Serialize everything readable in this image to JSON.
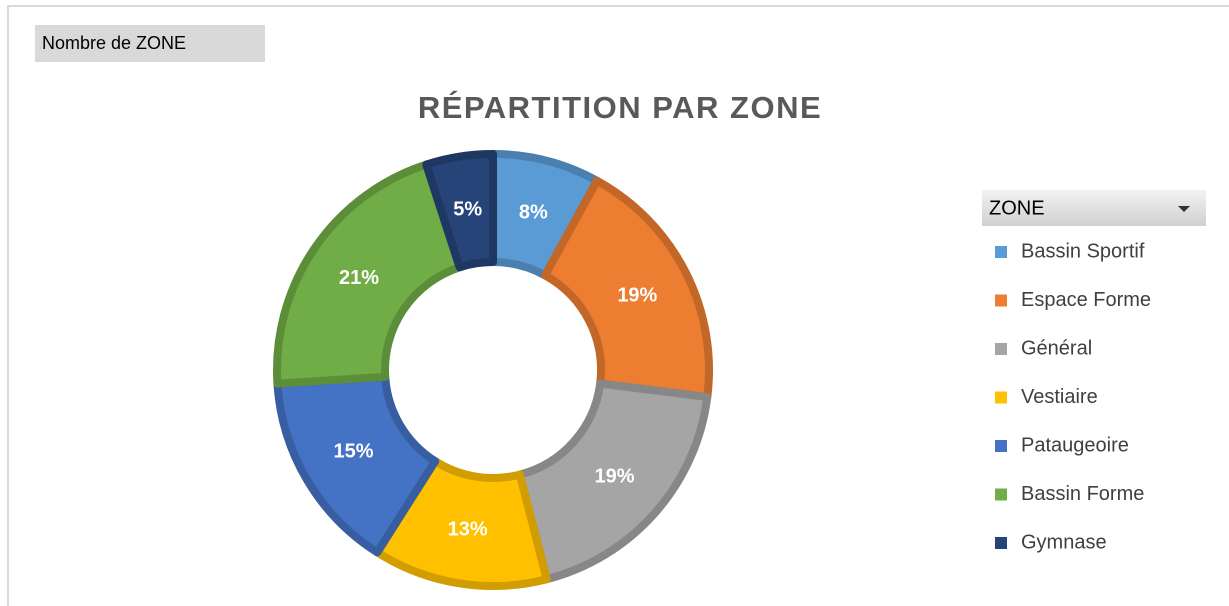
{
  "field_button": "Nombre de ZONE",
  "chart_data": {
    "type": "donut",
    "title": "RÉPARTITION PAR ZONE",
    "legend_title": "ZONE",
    "legend": "right",
    "categories": [
      "Bassin Sportif",
      "Espace Forme",
      "Général",
      "Vestiaire",
      "Pataugeoire",
      "Bassin Forme",
      "Gymnase"
    ],
    "values": [
      8,
      19,
      19,
      13,
      15,
      21,
      5
    ],
    "value_labels": [
      "8%",
      "19%",
      "19%",
      "13%",
      "15%",
      "21%",
      "5%"
    ],
    "colors": [
      "#5b9bd5",
      "#ed7d31",
      "#a5a5a5",
      "#ffc000",
      "#4472c4",
      "#70ad47",
      "#264478"
    ]
  }
}
